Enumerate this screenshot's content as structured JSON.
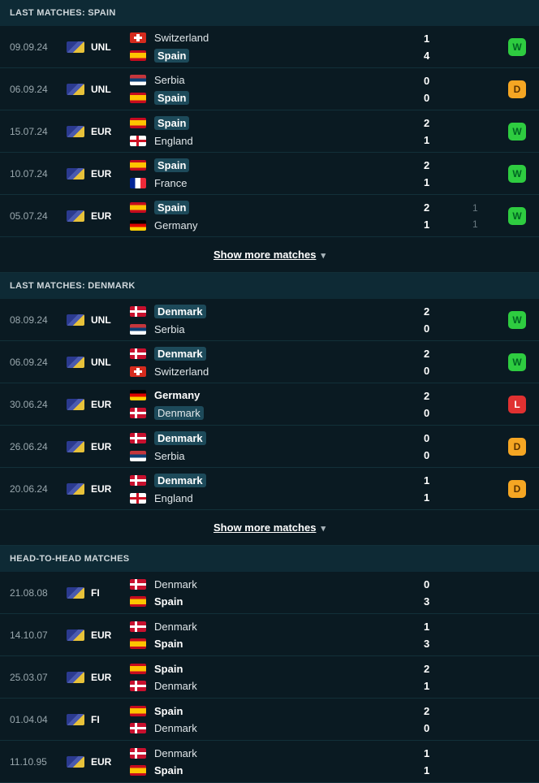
{
  "sections": [
    {
      "title": "LAST MATCHES: SPAIN",
      "show_more": "Show more matches",
      "matches": [
        {
          "date": "09.09.24",
          "comp": "UNL",
          "team1": {
            "name": "Switzerland",
            "flag": "sui",
            "bold": false,
            "hl": false
          },
          "team2": {
            "name": "Spain",
            "flag": "esp",
            "bold": true,
            "hl": true
          },
          "score1": "1",
          "score2": "4",
          "extra1": "",
          "extra2": "",
          "result": "W"
        },
        {
          "date": "06.09.24",
          "comp": "UNL",
          "team1": {
            "name": "Serbia",
            "flag": "srb",
            "bold": false,
            "hl": false
          },
          "team2": {
            "name": "Spain",
            "flag": "esp",
            "bold": true,
            "hl": true
          },
          "score1": "0",
          "score2": "0",
          "extra1": "",
          "extra2": "",
          "result": "D"
        },
        {
          "date": "15.07.24",
          "comp": "EUR",
          "team1": {
            "name": "Spain",
            "flag": "esp",
            "bold": true,
            "hl": true
          },
          "team2": {
            "name": "England",
            "flag": "eng",
            "bold": false,
            "hl": false
          },
          "score1": "2",
          "score2": "1",
          "extra1": "",
          "extra2": "",
          "result": "W"
        },
        {
          "date": "10.07.24",
          "comp": "EUR",
          "team1": {
            "name": "Spain",
            "flag": "esp",
            "bold": true,
            "hl": true
          },
          "team2": {
            "name": "France",
            "flag": "fra",
            "bold": false,
            "hl": false
          },
          "score1": "2",
          "score2": "1",
          "extra1": "",
          "extra2": "",
          "result": "W"
        },
        {
          "date": "05.07.24",
          "comp": "EUR",
          "team1": {
            "name": "Spain",
            "flag": "esp",
            "bold": true,
            "hl": true
          },
          "team2": {
            "name": "Germany",
            "flag": "ger",
            "bold": false,
            "hl": false
          },
          "score1": "2",
          "score2": "1",
          "extra1": "1",
          "extra2": "1",
          "result": "W"
        }
      ]
    },
    {
      "title": "LAST MATCHES: DENMARK",
      "show_more": "Show more matches",
      "matches": [
        {
          "date": "08.09.24",
          "comp": "UNL",
          "team1": {
            "name": "Denmark",
            "flag": "den",
            "bold": true,
            "hl": true
          },
          "team2": {
            "name": "Serbia",
            "flag": "srb",
            "bold": false,
            "hl": false
          },
          "score1": "2",
          "score2": "0",
          "extra1": "",
          "extra2": "",
          "result": "W"
        },
        {
          "date": "06.09.24",
          "comp": "UNL",
          "team1": {
            "name": "Denmark",
            "flag": "den",
            "bold": true,
            "hl": true
          },
          "team2": {
            "name": "Switzerland",
            "flag": "sui",
            "bold": false,
            "hl": false
          },
          "score1": "2",
          "score2": "0",
          "extra1": "",
          "extra2": "",
          "result": "W"
        },
        {
          "date": "30.06.24",
          "comp": "EUR",
          "team1": {
            "name": "Germany",
            "flag": "ger",
            "bold": true,
            "hl": false
          },
          "team2": {
            "name": "Denmark",
            "flag": "den",
            "bold": false,
            "hl": true
          },
          "score1": "2",
          "score2": "0",
          "extra1": "",
          "extra2": "",
          "result": "L"
        },
        {
          "date": "26.06.24",
          "comp": "EUR",
          "team1": {
            "name": "Denmark",
            "flag": "den",
            "bold": true,
            "hl": true
          },
          "team2": {
            "name": "Serbia",
            "flag": "srb",
            "bold": false,
            "hl": false
          },
          "score1": "0",
          "score2": "0",
          "extra1": "",
          "extra2": "",
          "result": "D"
        },
        {
          "date": "20.06.24",
          "comp": "EUR",
          "team1": {
            "name": "Denmark",
            "flag": "den",
            "bold": true,
            "hl": true
          },
          "team2": {
            "name": "England",
            "flag": "eng",
            "bold": false,
            "hl": false
          },
          "score1": "1",
          "score2": "1",
          "extra1": "",
          "extra2": "",
          "result": "D"
        }
      ]
    },
    {
      "title": "HEAD-TO-HEAD MATCHES",
      "show_more": "",
      "matches": [
        {
          "date": "21.08.08",
          "comp": "FI",
          "team1": {
            "name": "Denmark",
            "flag": "den",
            "bold": false,
            "hl": false
          },
          "team2": {
            "name": "Spain",
            "flag": "esp",
            "bold": true,
            "hl": false
          },
          "score1": "0",
          "score2": "3",
          "extra1": "",
          "extra2": "",
          "result": ""
        },
        {
          "date": "14.10.07",
          "comp": "EUR",
          "team1": {
            "name": "Denmark",
            "flag": "den",
            "bold": false,
            "hl": false
          },
          "team2": {
            "name": "Spain",
            "flag": "esp",
            "bold": true,
            "hl": false
          },
          "score1": "1",
          "score2": "3",
          "extra1": "",
          "extra2": "",
          "result": ""
        },
        {
          "date": "25.03.07",
          "comp": "EUR",
          "team1": {
            "name": "Spain",
            "flag": "esp",
            "bold": true,
            "hl": false
          },
          "team2": {
            "name": "Denmark",
            "flag": "den",
            "bold": false,
            "hl": false
          },
          "score1": "2",
          "score2": "1",
          "extra1": "",
          "extra2": "",
          "result": ""
        },
        {
          "date": "01.04.04",
          "comp": "FI",
          "team1": {
            "name": "Spain",
            "flag": "esp",
            "bold": true,
            "hl": false
          },
          "team2": {
            "name": "Denmark",
            "flag": "den",
            "bold": false,
            "hl": false
          },
          "score1": "2",
          "score2": "0",
          "extra1": "",
          "extra2": "",
          "result": ""
        },
        {
          "date": "11.10.95",
          "comp": "EUR",
          "team1": {
            "name": "Denmark",
            "flag": "den",
            "bold": false,
            "hl": false
          },
          "team2": {
            "name": "Spain",
            "flag": "esp",
            "bold": true,
            "hl": false
          },
          "score1": "1",
          "score2": "1",
          "extra1": "",
          "extra2": "",
          "result": ""
        }
      ]
    }
  ]
}
